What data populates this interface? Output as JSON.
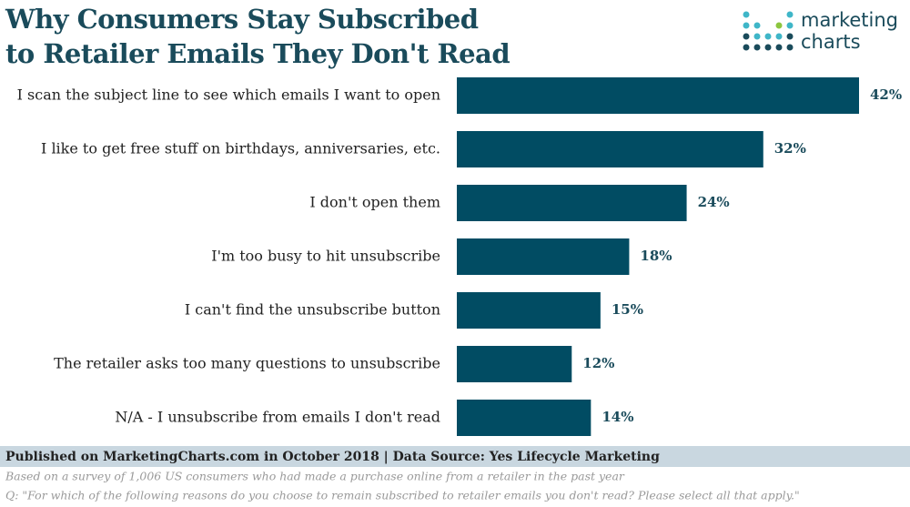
{
  "chart_data": {
    "type": "bar",
    "orientation": "horizontal",
    "title": "Why Consumers Stay Subscribed to Retailer Emails They Don't Read",
    "logo": "marketing charts",
    "categories": [
      "I scan the subject line to see which emails I want to open",
      "I like to get free stuff on birthdays, anniversaries, etc.",
      "I don't open them",
      "I'm too busy to hit unsubscribe",
      "I can't find the unsubscribe button",
      "The retailer asks too many questions to unsubscribe",
      "N/A - I unsubscribe from emails I don't read"
    ],
    "values": [
      42,
      32,
      24,
      18,
      15,
      12,
      14
    ],
    "value_labels": [
      "42%",
      "32%",
      "24%",
      "18%",
      "15%",
      "12%",
      "14%"
    ],
    "color": "#014c63",
    "source": "Published on MarketingCharts.com in October 2018 | Data Source: Yes Lifecycle Marketing",
    "notes": [
      "Based on a survey of 1,006 US consumers who had made a purchase online from a retailer in the past year",
      "Q: \"For which of the following reasons do you choose to remain subscribed to retailer emails you don't read? Please select all that apply.\""
    ]
  }
}
